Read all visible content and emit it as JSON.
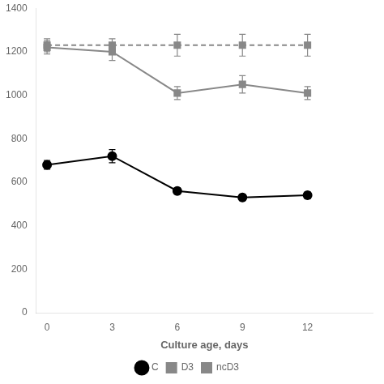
{
  "chart_data": {
    "type": "line",
    "xlabel": "Culture age, days",
    "x": [
      0,
      3,
      6,
      9,
      12
    ],
    "series": [
      {
        "name": "ncD3",
        "color": "#888888",
        "marker": "square",
        "line_style": "dashed",
        "values": [
          1230,
          1230,
          1230,
          1230,
          1230
        ],
        "errors": [
          30,
          30,
          50,
          50,
          50
        ]
      },
      {
        "name": "D3",
        "color": "#888888",
        "marker": "square",
        "line_style": "solid",
        "values": [
          1220,
          1200,
          1010,
          1050,
          1010
        ],
        "errors": [
          30,
          40,
          30,
          40,
          30
        ]
      },
      {
        "name": "C",
        "color": "#000000",
        "marker": "circle",
        "line_style": "solid",
        "values": [
          680,
          720,
          560,
          530,
          540
        ],
        "errors": [
          20,
          30,
          15,
          15,
          15
        ]
      }
    ],
    "xlim": [
      -0.5,
      15
    ],
    "xticks": [
      0,
      3,
      6,
      9,
      12
    ],
    "ylim": [
      0,
      1400
    ],
    "yticks": [
      0,
      200,
      400,
      600,
      800,
      1000,
      1200,
      1400
    ],
    "grid": false,
    "legend": "bottom"
  }
}
